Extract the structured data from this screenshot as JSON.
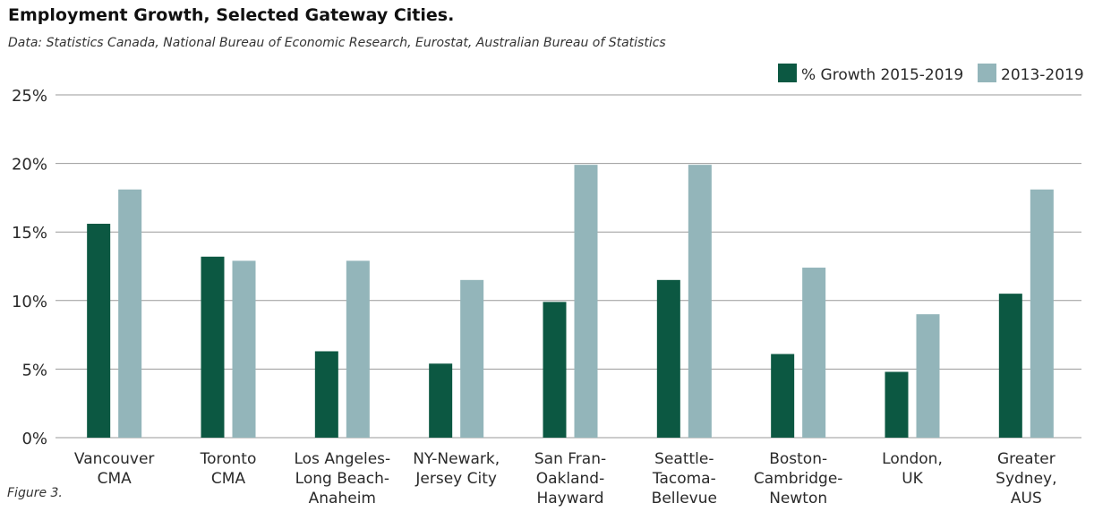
{
  "title": "Employment Growth, Selected Gateway Cities.",
  "subtitle": "Data: Statistics Canada, National Bureau of Economic Research, Eurostat, Australian Bureau of Statistics",
  "caption": "Figure 3.",
  "chart_data": {
    "type": "bar",
    "categories": [
      [
        "Vancouver",
        "CMA"
      ],
      [
        "Toronto",
        "CMA"
      ],
      [
        "Los Angeles-",
        "Long Beach-",
        "Anaheim"
      ],
      [
        "NY-Newark,",
        "Jersey City"
      ],
      [
        "San Fran-",
        "Oakland-",
        "Hayward"
      ],
      [
        "Seattle-",
        "Tacoma-",
        "Bellevue"
      ],
      [
        "Boston-",
        "Cambridge-",
        "Newton"
      ],
      [
        "London,",
        "UK"
      ],
      [
        "Greater",
        "Sydney,",
        "AUS"
      ]
    ],
    "series": [
      {
        "name": "% Growth 2015-2019",
        "color": "#0c5842",
        "values": [
          15.6,
          13.2,
          6.3,
          5.4,
          9.9,
          11.5,
          6.1,
          4.8,
          10.5
        ]
      },
      {
        "name": "2013-2019",
        "color": "#93b5ba",
        "values": [
          18.1,
          12.9,
          12.9,
          11.5,
          19.9,
          19.9,
          12.4,
          9.0,
          18.1
        ]
      }
    ],
    "ylim": [
      0,
      25
    ],
    "yticks": [
      0,
      5,
      10,
      15,
      20,
      25
    ],
    "ytick_labels": [
      "0%",
      "5%",
      "10%",
      "15%",
      "20%",
      "25%"
    ],
    "grid": true,
    "legend_position": "top-right"
  }
}
